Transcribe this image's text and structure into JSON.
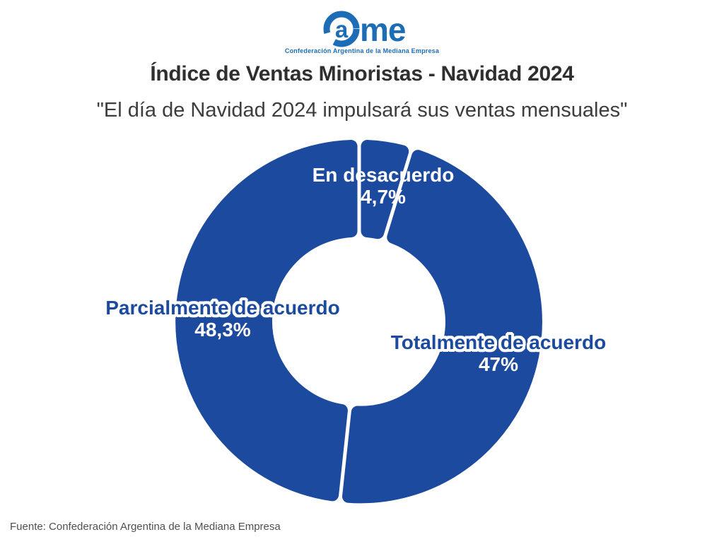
{
  "brand": {
    "logo_inner_letter": "a",
    "logo_rest": "me",
    "tagline": "Confederación Argentina de la Mediana Empresa",
    "logo_color": "#1d6db6"
  },
  "header": {
    "title": "Índice de Ventas Minoristas - Navidad 2024",
    "subtitle": "\"El día de Navidad 2024 impulsará sus ventas mensuales\""
  },
  "chart_data": {
    "type": "pie",
    "variant": "donut",
    "title": "Índice de Ventas Minoristas - Navidad 2024",
    "subtitle": "\"El día de Navidad 2024 impulsará sus ventas mensuales\"",
    "unit": "%",
    "start_angle_deg": 0,
    "direction": "clockwise",
    "segments": [
      {
        "label": "En desacuerdo",
        "value": 4.7,
        "value_label": "4,7%"
      },
      {
        "label": "Totalmente de acuerdo",
        "value": 47,
        "value_label": "47%"
      },
      {
        "label": "Parcialmente de acuerdo",
        "value": 48.3,
        "value_label": "48,3%"
      }
    ],
    "colors": {
      "segment_fill": "#1b4a9f",
      "gap": "#ffffff",
      "label_on_ring": "#ffffff",
      "label_outside": "#1b4a9f"
    },
    "legend_position": "labels-on-chart"
  },
  "footer": {
    "source": "Fuente: Confederación Argentina de la Mediana Empresa"
  }
}
